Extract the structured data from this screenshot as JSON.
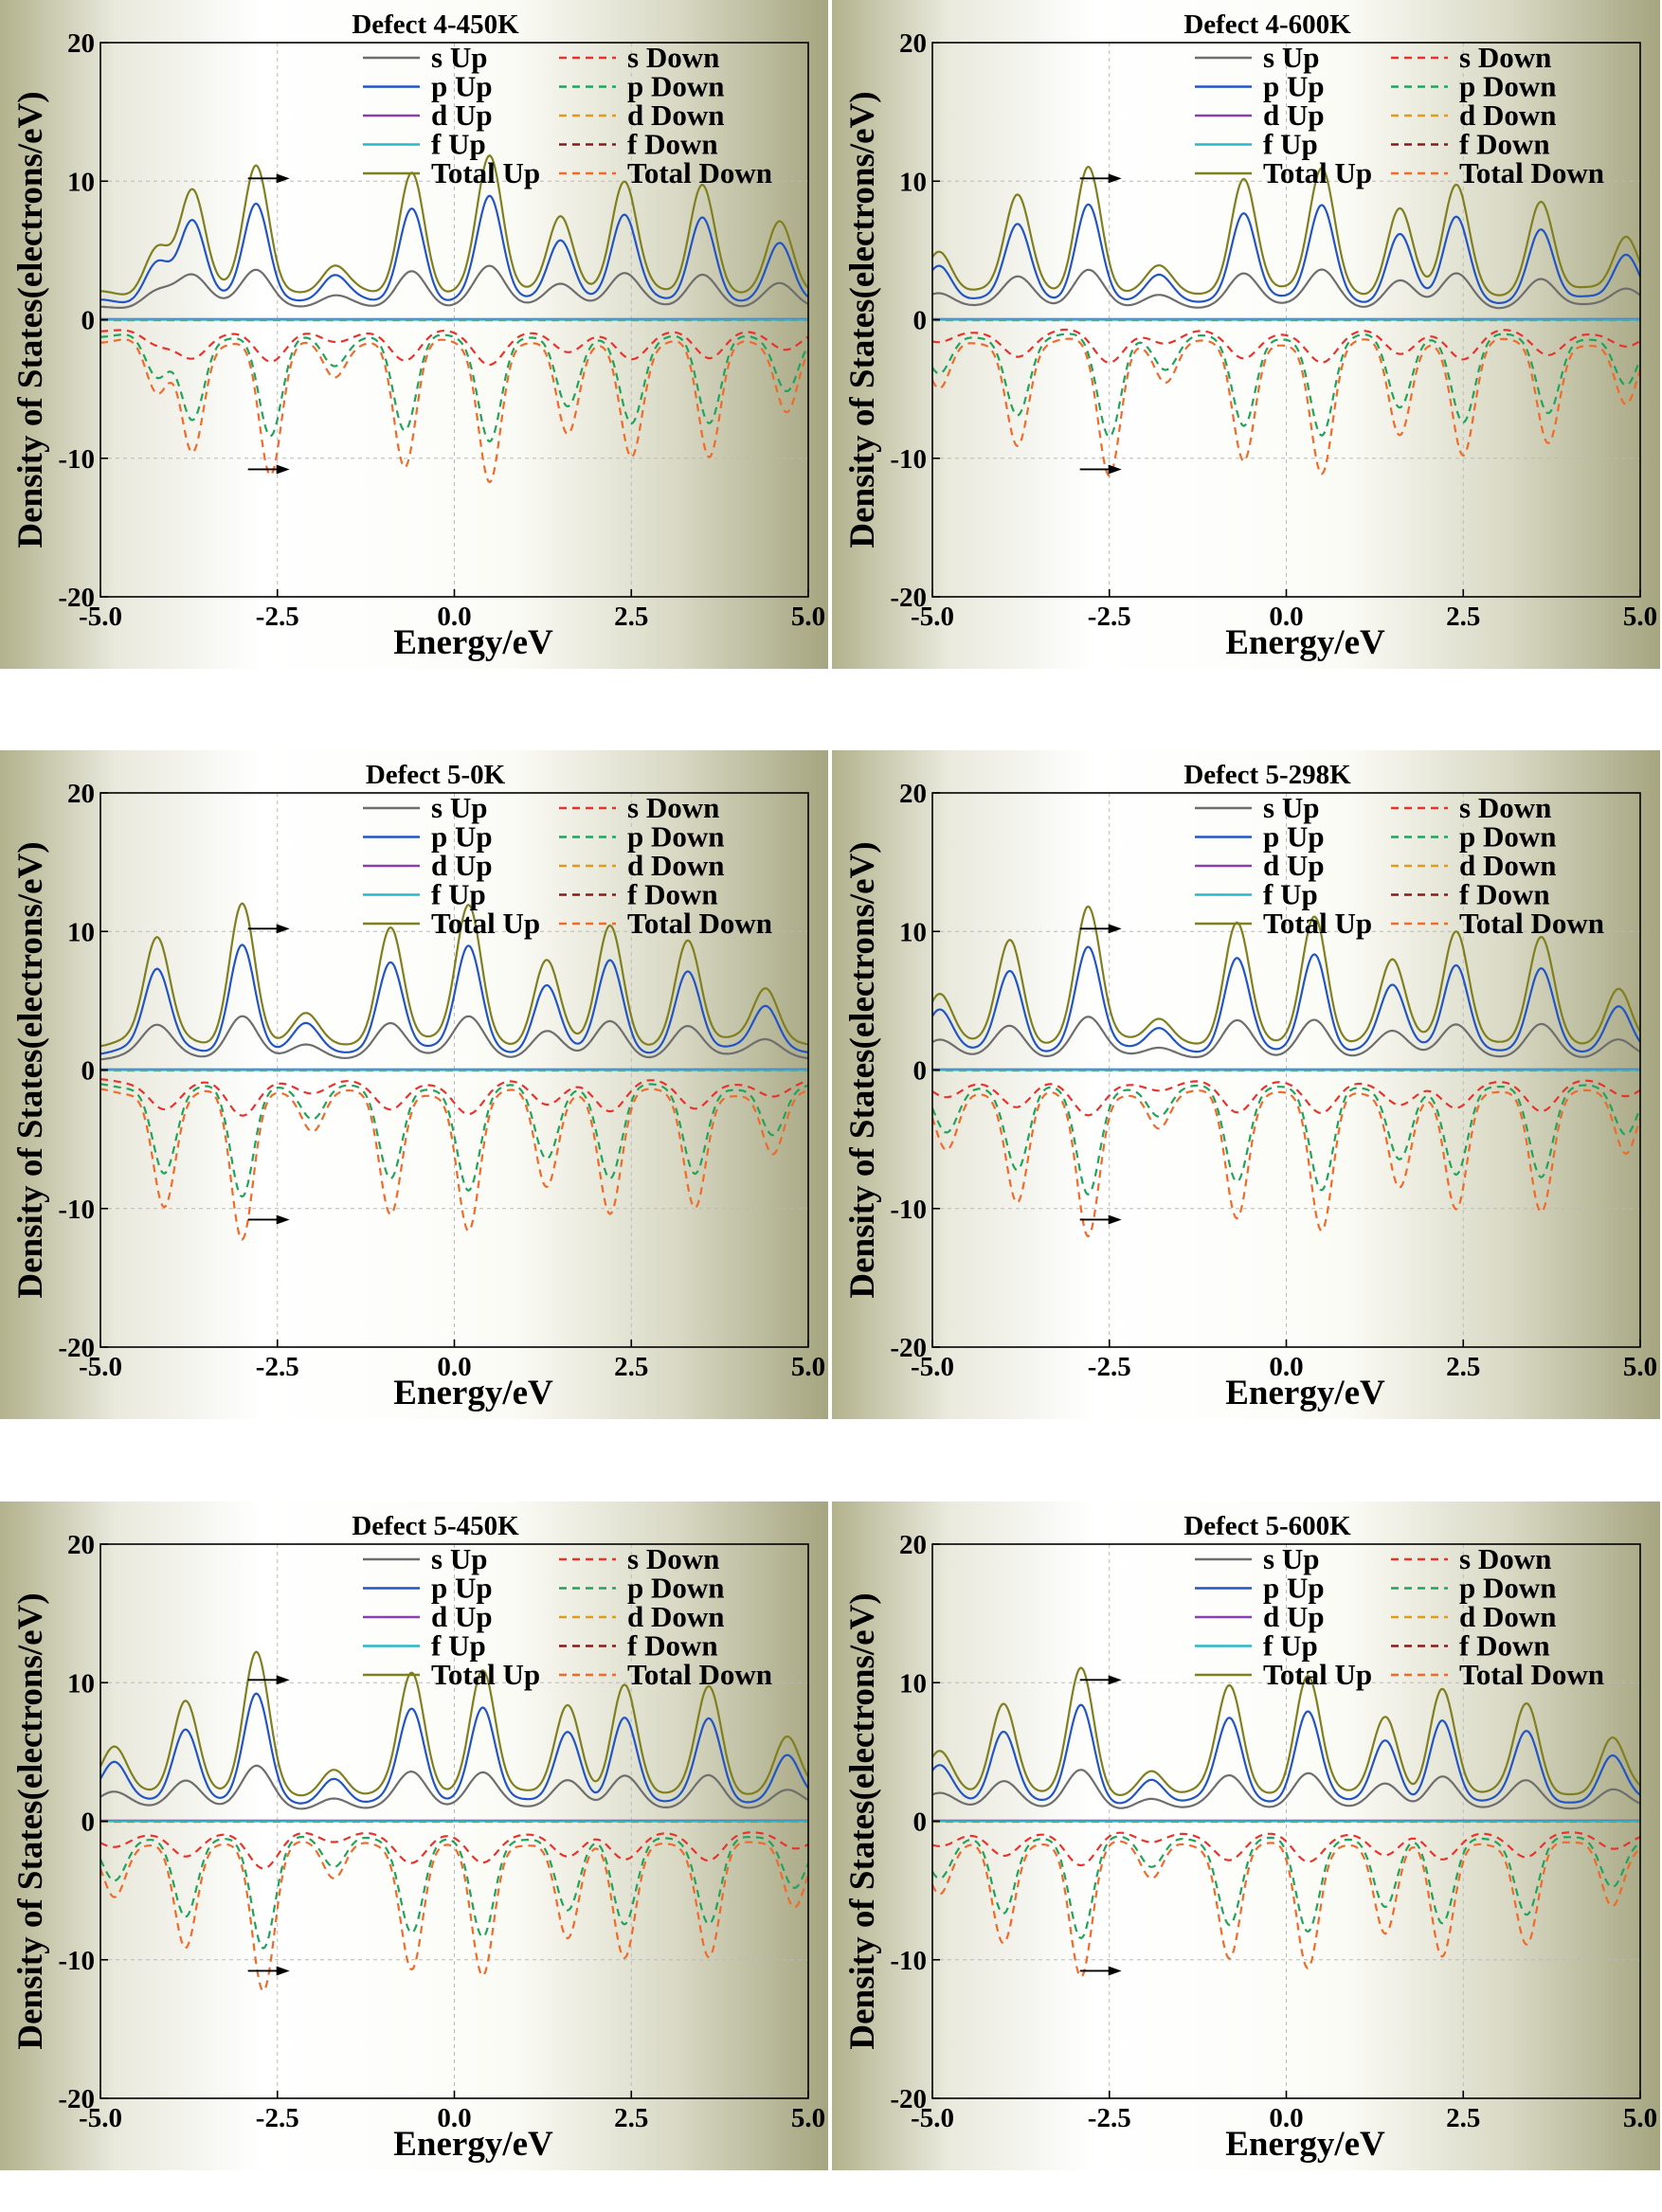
{
  "figure": {
    "colors": {
      "s Up": "#6e6e6e",
      "p Up": "#2255c4",
      "d Up": "#8a3fb0",
      "f Up": "#27b9c9",
      "Total Up": "#7f7f1f",
      "s Down": "#e8332d",
      "p Down": "#20a35a",
      "d Down": "#e29a1a",
      "f Down": "#8a1a1a",
      "Total Down": "#f06a2a"
    }
  },
  "chart_data": [
    {
      "type": "line",
      "title": "Defect 4-450K",
      "xlabel": "Energy/eV",
      "ylabel": "Density of States(electrons/eV)",
      "xlim": [
        -5,
        5
      ],
      "ylim": [
        -20,
        20
      ],
      "xticks": [
        "-5.0",
        "-2.5",
        "0.0",
        "2.5",
        "5.0"
      ],
      "yticks": [
        "-20",
        "-10",
        "0",
        "10",
        "20"
      ],
      "grid": true,
      "legend": [
        "s Up",
        "s Down",
        "p Up",
        "p Down",
        "d Up",
        "d Down",
        "f Up",
        "f Down",
        "Total Up",
        "Total Down"
      ],
      "total_up_peaks": [
        [
          -4.2,
          5.2
        ],
        [
          -3.7,
          9.3
        ],
        [
          -2.8,
          11.4
        ],
        [
          -1.7,
          3.7
        ],
        [
          -0.6,
          10.7
        ],
        [
          0.5,
          11.7
        ],
        [
          1.5,
          7.8
        ],
        [
          2.4,
          9.9
        ],
        [
          3.5,
          9.9
        ],
        [
          4.6,
          6.8
        ]
      ],
      "total_down_dips": [
        [
          -4.2,
          -5.3
        ],
        [
          -3.7,
          -9.5
        ],
        [
          -2.6,
          -11.4
        ],
        [
          -1.7,
          -4.0
        ],
        [
          -0.7,
          -10.7
        ],
        [
          0.5,
          -11.6
        ],
        [
          1.6,
          -8.5
        ],
        [
          2.5,
          -9.8
        ],
        [
          3.6,
          -10.0
        ],
        [
          4.7,
          -6.5
        ]
      ]
    },
    {
      "type": "line",
      "title": "Defect 4-600K",
      "xlabel": "Energy/eV",
      "ylabel": "Density of States(electrons/eV)",
      "xlim": [
        -5,
        5
      ],
      "ylim": [
        -20,
        20
      ],
      "xticks": [
        "-5.0",
        "-2.5",
        "0.0",
        "2.5",
        "5.0"
      ],
      "yticks": [
        "-20",
        "-10",
        "0",
        "10",
        "20"
      ],
      "grid": true,
      "legend": [
        "s Up",
        "s Down",
        "p Up",
        "p Down",
        "d Up",
        "d Down",
        "f Up",
        "f Down",
        "Total Up",
        "Total Down"
      ],
      "total_up_peaks": [
        [
          -4.9,
          5.2
        ],
        [
          -3.8,
          8.9
        ],
        [
          -2.8,
          11.2
        ],
        [
          -1.8,
          3.6
        ],
        [
          -0.6,
          10.4
        ],
        [
          0.5,
          10.9
        ],
        [
          1.6,
          8.0
        ],
        [
          2.4,
          9.5
        ],
        [
          3.6,
          8.6
        ],
        [
          4.8,
          6.1
        ]
      ],
      "total_down_dips": [
        [
          -4.9,
          -5.2
        ],
        [
          -3.8,
          -9.0
        ],
        [
          -2.5,
          -11.3
        ],
        [
          -1.7,
          -4.3
        ],
        [
          -0.6,
          -10.4
        ],
        [
          0.5,
          -11.1
        ],
        [
          1.6,
          -8.3
        ],
        [
          2.5,
          -9.6
        ],
        [
          3.7,
          -9.0
        ],
        [
          4.8,
          -6.2
        ]
      ]
    },
    {
      "type": "line",
      "title": "Defect 5-0K",
      "xlabel": "Energy/eV",
      "ylabel": "Density of States(electrons/eV)",
      "xlim": [
        -5,
        5
      ],
      "ylim": [
        -20,
        20
      ],
      "xticks": [
        "-5.0",
        "-2.5",
        "0.0",
        "2.5",
        "5.0"
      ],
      "yticks": [
        "-20",
        "-10",
        "0",
        "10",
        "20"
      ],
      "grid": true,
      "legend": [
        "s Up",
        "s Down",
        "p Up",
        "p Down",
        "d Up",
        "d Down",
        "f Up",
        "f Down",
        "Total Up",
        "Total Down"
      ],
      "total_up_peaks": [
        [
          -4.2,
          9.5
        ],
        [
          -3.0,
          12.1
        ],
        [
          -2.1,
          3.8
        ],
        [
          -0.9,
          10.5
        ],
        [
          0.2,
          11.9
        ],
        [
          1.3,
          7.9
        ],
        [
          2.2,
          10.2
        ],
        [
          3.3,
          9.4
        ],
        [
          4.4,
          6.0
        ]
      ],
      "total_down_dips": [
        [
          -4.1,
          -9.8
        ],
        [
          -3.0,
          -12.3
        ],
        [
          -2.0,
          -4.2
        ],
        [
          -0.9,
          -10.6
        ],
        [
          0.2,
          -11.6
        ],
        [
          1.3,
          -8.4
        ],
        [
          2.2,
          -10.2
        ],
        [
          3.4,
          -10.0
        ],
        [
          4.5,
          -6.2
        ]
      ]
    },
    {
      "type": "line",
      "title": "Defect 5-298K",
      "xlabel": "Energy/eV",
      "ylabel": "Density of States(electrons/eV)",
      "xlim": [
        -5,
        5
      ],
      "ylim": [
        -20,
        20
      ],
      "xticks": [
        "-5.0",
        "-2.5",
        "0.0",
        "2.5",
        "5.0"
      ],
      "yticks": [
        "-20",
        "-10",
        "0",
        "10",
        "20"
      ],
      "grid": true,
      "legend": [
        "s Up",
        "s Down",
        "p Up",
        "p Down",
        "d Up",
        "d Down",
        "f Up",
        "f Down",
        "Total Up",
        "Total Down"
      ],
      "total_up_peaks": [
        [
          -4.9,
          5.3
        ],
        [
          -3.9,
          9.4
        ],
        [
          -2.8,
          11.8
        ],
        [
          -1.8,
          3.9
        ],
        [
          -0.7,
          10.4
        ],
        [
          0.4,
          11.2
        ],
        [
          1.5,
          7.9
        ],
        [
          2.4,
          10.3
        ],
        [
          3.6,
          9.3
        ],
        [
          4.7,
          6.0
        ]
      ],
      "total_down_dips": [
        [
          -4.8,
          -5.6
        ],
        [
          -3.8,
          -9.7
        ],
        [
          -2.8,
          -12.0
        ],
        [
          -1.8,
          -4.4
        ],
        [
          -0.7,
          -10.5
        ],
        [
          0.5,
          -11.8
        ],
        [
          1.6,
          -8.4
        ],
        [
          2.4,
          -10.3
        ],
        [
          3.6,
          -10.0
        ],
        [
          4.8,
          -6.2
        ]
      ]
    },
    {
      "type": "line",
      "title": "Defect 5-450K",
      "xlabel": "Energy/eV",
      "ylabel": "Density of States(electrons/eV)",
      "xlim": [
        -5,
        5
      ],
      "ylim": [
        -20,
        20
      ],
      "xticks": [
        "-5.0",
        "-2.5",
        "0.0",
        "2.5",
        "5.0"
      ],
      "yticks": [
        "-20",
        "-10",
        "0",
        "10",
        "20"
      ],
      "grid": true,
      "legend": [
        "s Up",
        "s Down",
        "p Up",
        "p Down",
        "d Up",
        "d Down",
        "f Up",
        "f Down",
        "Total Up",
        "Total Down"
      ],
      "total_up_peaks": [
        [
          -4.8,
          5.3
        ],
        [
          -3.8,
          9.0
        ],
        [
          -2.8,
          12.0
        ],
        [
          -1.7,
          3.8
        ],
        [
          -0.6,
          10.6
        ],
        [
          0.4,
          11.2
        ],
        [
          1.6,
          8.2
        ],
        [
          2.4,
          10.0
        ],
        [
          3.6,
          9.6
        ],
        [
          4.7,
          6.3
        ]
      ],
      "total_down_dips": [
        [
          -4.8,
          -5.4
        ],
        [
          -3.8,
          -9.4
        ],
        [
          -2.7,
          -12.0
        ],
        [
          -1.7,
          -4.2
        ],
        [
          -0.6,
          -10.6
        ],
        [
          0.4,
          -11.4
        ],
        [
          1.6,
          -8.3
        ],
        [
          2.4,
          -10.0
        ],
        [
          3.6,
          -9.7
        ],
        [
          4.8,
          -6.3
        ]
      ]
    },
    {
      "type": "line",
      "title": "Defect 5-600K",
      "xlabel": "Energy/eV",
      "ylabel": "Density of States(electrons/eV)",
      "xlim": [
        -5,
        5
      ],
      "ylim": [
        -20,
        20
      ],
      "xticks": [
        "-5.0",
        "-2.5",
        "0.0",
        "2.5",
        "5.0"
      ],
      "yticks": [
        "-20",
        "-10",
        "0",
        "10",
        "20"
      ],
      "grid": true,
      "legend": [
        "s Up",
        "s Down",
        "p Up",
        "p Down",
        "d Up",
        "d Down",
        "f Up",
        "f Down",
        "Total Up",
        "Total Down"
      ],
      "total_up_peaks": [
        [
          -4.9,
          5.0
        ],
        [
          -4.0,
          8.7
        ],
        [
          -2.9,
          10.8
        ],
        [
          -1.9,
          3.7
        ],
        [
          -0.8,
          9.8
        ],
        [
          0.3,
          10.6
        ],
        [
          1.4,
          7.4
        ],
        [
          2.2,
          9.6
        ],
        [
          3.4,
          8.5
        ],
        [
          4.6,
          6.0
        ]
      ],
      "total_down_dips": [
        [
          -4.9,
          -5.2
        ],
        [
          -4.0,
          -9.0
        ],
        [
          -2.9,
          -11.0
        ],
        [
          -1.9,
          -4.2
        ],
        [
          -0.8,
          -9.9
        ],
        [
          0.3,
          -10.7
        ],
        [
          1.4,
          -8.0
        ],
        [
          2.2,
          -9.8
        ],
        [
          3.4,
          -8.9
        ],
        [
          4.6,
          -6.1
        ]
      ]
    }
  ]
}
